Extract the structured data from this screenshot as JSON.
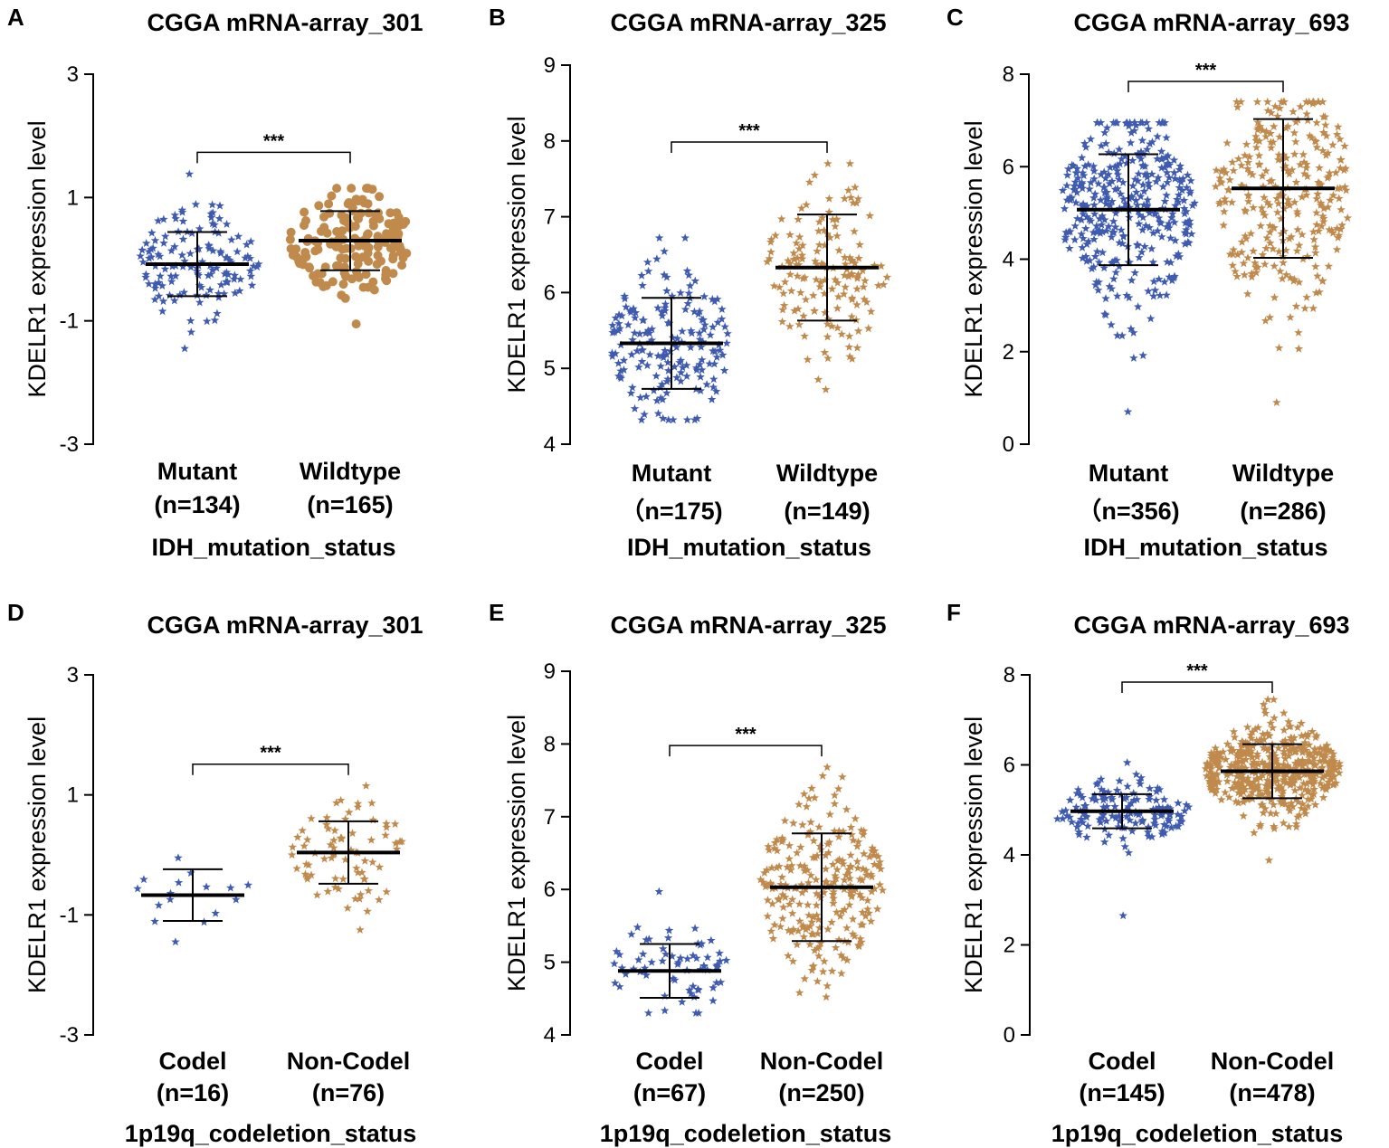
{
  "colors": {
    "group1": "#3f5bb0",
    "group2": "#c08a4c",
    "axis": "#000000"
  },
  "chart_data": [
    {
      "letter": "A",
      "type": "scatter",
      "title": "CGGA mRNA-array_301",
      "ylabel": "KDELR1 expression level",
      "xlabel": "IDH_mutation_status",
      "ylim": [
        -3,
        3
      ],
      "yticks": [
        "-3",
        "-1",
        "1",
        "3"
      ],
      "ytick_values": [
        -3,
        -1,
        1,
        3
      ],
      "significance": "***",
      "marker": [
        "star",
        "circle"
      ],
      "groups": [
        {
          "name": "Mutant",
          "n": "(n=134)",
          "count": 134,
          "mean": -0.08,
          "sd": 0.52,
          "min": -1.45,
          "max": 1.38
        },
        {
          "name": "Wildtype",
          "n": "(n=165)",
          "count": 165,
          "mean": 0.3,
          "sd": 0.48,
          "min": -1.05,
          "max": 1.15
        }
      ]
    },
    {
      "letter": "B",
      "type": "scatter",
      "title": "CGGA mRNA-array_325",
      "ylabel": "KDELR1 expression level",
      "xlabel": "IDH_mutation_status",
      "ylim": [
        4,
        9
      ],
      "yticks": [
        "4",
        "5",
        "6",
        "7",
        "8",
        "9"
      ],
      "ytick_values": [
        4,
        5,
        6,
        7,
        8,
        9
      ],
      "significance": "***",
      "marker": [
        "star",
        "star"
      ],
      "groups": [
        {
          "name": "Mutant",
          "n": "（n=175)",
          "count": 175,
          "mean": 5.33,
          "sd": 0.6,
          "min": 4.32,
          "max": 6.72
        },
        {
          "name": "Wildtype",
          "n": "(n=149)",
          "count": 149,
          "mean": 6.33,
          "sd": 0.7,
          "min": 4.72,
          "max": 7.7
        }
      ]
    },
    {
      "letter": "C",
      "type": "scatter",
      "title": "CGGA mRNA-array_693",
      "ylabel": "KDELR1 expression level",
      "xlabel": "IDH_mutation_status",
      "ylim": [
        0,
        8
      ],
      "yticks": [
        "0",
        "2",
        "4",
        "6",
        "8"
      ],
      "ytick_values": [
        0,
        2,
        4,
        6,
        8
      ],
      "significance": "***",
      "marker": [
        "star",
        "star"
      ],
      "groups": [
        {
          "name": "Mutant",
          "n": "（n=356)",
          "count": 356,
          "mean": 5.07,
          "sd": 1.2,
          "min": 0.7,
          "max": 6.95
        },
        {
          "name": "Wildtype",
          "n": "(n=286)",
          "count": 286,
          "mean": 5.53,
          "sd": 1.5,
          "min": 0.9,
          "max": 7.4
        }
      ]
    },
    {
      "letter": "D",
      "type": "scatter",
      "title": "CGGA mRNA-array_301",
      "ylabel": "KDELR1 expression level",
      "xlabel": "1p19q_codeletion_status",
      "ylim": [
        -3,
        3
      ],
      "yticks": [
        "-3",
        "-1",
        "1",
        "3"
      ],
      "ytick_values": [
        -3,
        -1,
        1,
        3
      ],
      "significance": "***",
      "marker": [
        "star",
        "star"
      ],
      "groups": [
        {
          "name": "Codel",
          "n": "(n=16)",
          "count": 16,
          "mean": -0.67,
          "sd": 0.43,
          "min": -1.45,
          "max": -0.05
        },
        {
          "name": "Non-Codel",
          "n": "(n=76)",
          "count": 76,
          "mean": 0.04,
          "sd": 0.52,
          "min": -1.25,
          "max": 1.15
        }
      ]
    },
    {
      "letter": "E",
      "type": "scatter",
      "title": "CGGA mRNA-array_325",
      "ylabel": "KDELR1 expression level",
      "xlabel": "1p19q_codeletion_status",
      "ylim": [
        4,
        9
      ],
      "yticks": [
        "4",
        "5",
        "6",
        "7",
        "8",
        "9"
      ],
      "ytick_values": [
        4,
        5,
        6,
        7,
        8,
        9
      ],
      "significance": "***",
      "marker": [
        "star",
        "star"
      ],
      "groups": [
        {
          "name": "Codel",
          "n": "(n=67)",
          "count": 67,
          "mean": 4.88,
          "sd": 0.37,
          "min": 4.3,
          "max": 5.97
        },
        {
          "name": "Non-Codel",
          "n": "(n=250)",
          "count": 250,
          "mean": 6.03,
          "sd": 0.74,
          "min": 4.52,
          "max": 7.68
        }
      ]
    },
    {
      "letter": "F",
      "type": "scatter",
      "title": "CGGA mRNA-array_693",
      "ylabel": "KDELR1 expression level",
      "xlabel": "1p19q_codeletion_status",
      "ylim": [
        0,
        8
      ],
      "yticks": [
        "0",
        "2",
        "4",
        "6",
        "8"
      ],
      "ytick_values": [
        0,
        2,
        4,
        6,
        8
      ],
      "significance": "***",
      "marker": [
        "star",
        "star"
      ],
      "groups": [
        {
          "name": "Codel",
          "n": "(n=145)",
          "count": 145,
          "mean": 4.97,
          "sd": 0.38,
          "min": 2.65,
          "max": 6.05
        },
        {
          "name": "Non-Codel",
          "n": "(n=478)",
          "count": 478,
          "mean": 5.86,
          "sd": 0.6,
          "min": 3.88,
          "max": 7.45
        }
      ]
    }
  ]
}
